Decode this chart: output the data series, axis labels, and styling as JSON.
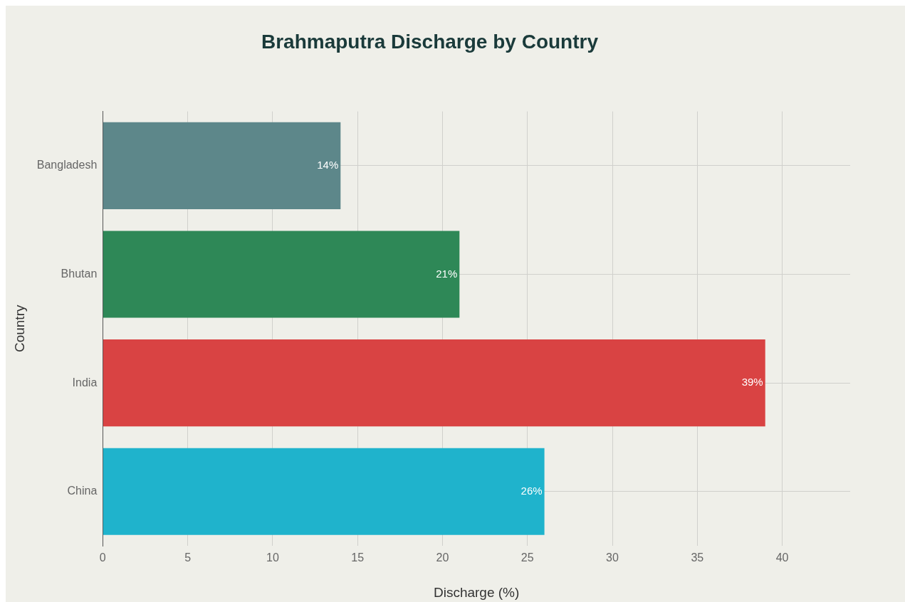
{
  "chart_data": {
    "type": "bar",
    "orientation": "horizontal",
    "title": "Brahmaputra Discharge by Country",
    "xlabel": "Discharge (%)",
    "ylabel": "Country",
    "categories": [
      "Bangladesh",
      "Bhutan",
      "India",
      "China"
    ],
    "values": [
      14,
      21,
      39,
      26
    ],
    "colors": [
      "#5d878a",
      "#2e8857",
      "#d94343",
      "#1fb3cc"
    ],
    "value_labels": [
      "14%",
      "21%",
      "39%",
      "26%"
    ],
    "xlim": [
      0,
      44
    ],
    "xticks": [
      0,
      5,
      10,
      15,
      20,
      25,
      30,
      35,
      40
    ],
    "grid": true
  }
}
